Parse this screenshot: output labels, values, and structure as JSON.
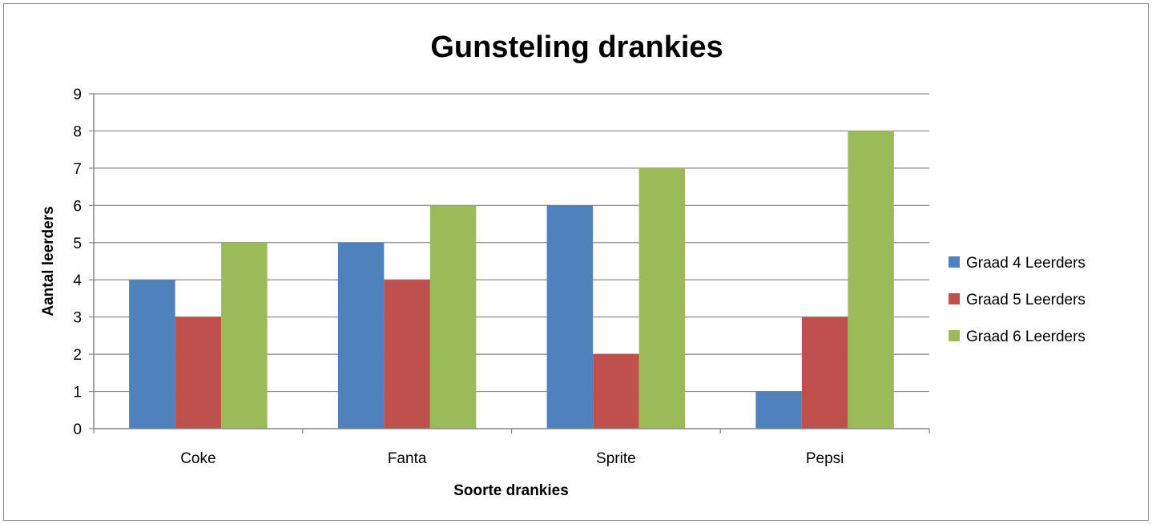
{
  "chart_data": {
    "type": "bar",
    "title": "Gunsteling drankies",
    "xlabel": "Soorte drankies",
    "ylabel": "Aantal leerders",
    "categories": [
      "Coke",
      "Fanta",
      "Sprite",
      "Pepsi"
    ],
    "series": [
      {
        "name": "Graad 4 Leerders",
        "values": [
          4,
          5,
          6,
          1
        ],
        "color": "#4F81BD"
      },
      {
        "name": "Graad 5 Leerders",
        "values": [
          3,
          4,
          2,
          3
        ],
        "color": "#C0504D"
      },
      {
        "name": "Graad 6 Leerders",
        "values": [
          5,
          6,
          7,
          8
        ],
        "color": "#9BBB59"
      }
    ],
    "ylim": [
      0,
      9
    ],
    "yticks": [
      "0",
      "1",
      "2",
      "3",
      "4",
      "5",
      "6",
      "7",
      "8",
      "9"
    ],
    "grid": true,
    "legend": "right"
  }
}
